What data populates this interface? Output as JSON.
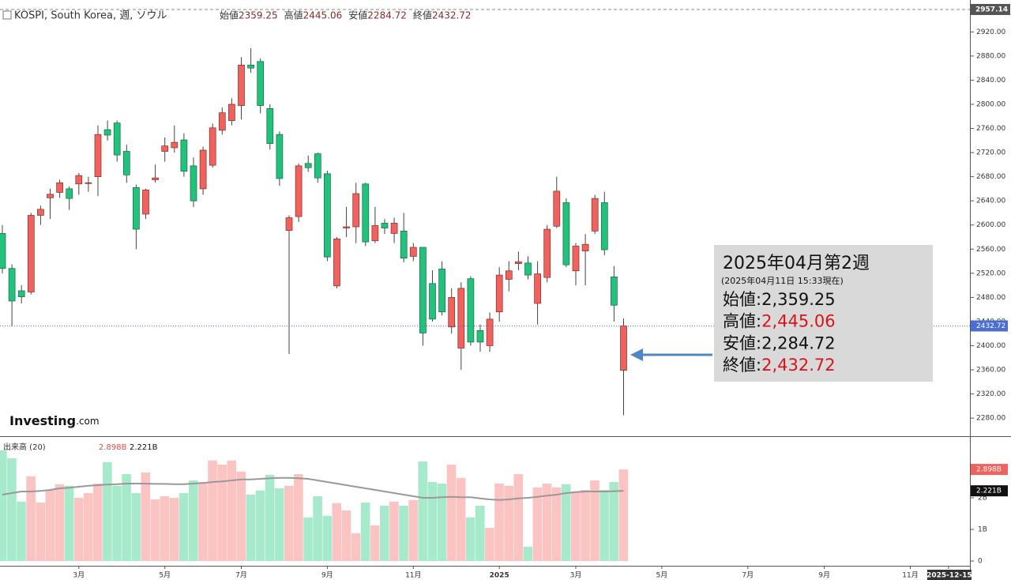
{
  "chart_data": {
    "type": "candlestick",
    "title": "KOSPI, South Korea, 週, ソウル",
    "ohlc_labels": [
      "始値",
      "高値",
      "安値",
      "終値"
    ],
    "open": [
      2586,
      2528,
      2491,
      2489,
      2616,
      2645,
      2654,
      2660,
      2668,
      2669,
      2680,
      2758,
      2769,
      2722,
      2662,
      2618,
      2675,
      2722,
      2728,
      2741,
      2698,
      2660,
      2699,
      2757,
      2773,
      2798,
      2865,
      2871,
      2793,
      2750,
      2591,
      2614,
      2702,
      2718,
      2685,
      2499,
      2595,
      2597,
      2668,
      2574,
      2603,
      2586,
      2590,
      2548,
      2563,
      2503,
      2527,
      2431,
      2396,
      2511,
      2425,
      2400,
      2456,
      2510,
      2536,
      2537,
      2470,
      2513,
      2598,
      2637,
      2524,
      2557,
      2590,
      2637,
      2514,
      2359.25
    ],
    "high": [
      2600,
      2535,
      2500,
      2620,
      2632,
      2660,
      2675,
      2664,
      2686,
      2680,
      2765,
      2773,
      2773,
      2733,
      2667,
      2660,
      2700,
      2745,
      2765,
      2752,
      2712,
      2730,
      2768,
      2795,
      2810,
      2878,
      2893,
      2876,
      2800,
      2755,
      2616,
      2702,
      2715,
      2720,
      2690,
      2580,
      2630,
      2670,
      2670,
      2630,
      2610,
      2612,
      2620,
      2570,
      2563,
      2525,
      2540,
      2495,
      2505,
      2515,
      2435,
      2455,
      2530,
      2540,
      2556,
      2548,
      2540,
      2600,
      2680,
      2644,
      2570,
      2585,
      2650,
      2655,
      2532,
      2445.06
    ],
    "low": [
      2520,
      2432,
      2470,
      2485,
      2600,
      2610,
      2645,
      2625,
      2650,
      2655,
      2648,
      2740,
      2705,
      2670,
      2560,
      2610,
      2670,
      2705,
      2720,
      2680,
      2630,
      2650,
      2695,
      2750,
      2765,
      2775,
      2852,
      2785,
      2725,
      2665,
      2386,
      2605,
      2688,
      2670,
      2540,
      2495,
      2580,
      2570,
      2565,
      2570,
      2585,
      2570,
      2538,
      2540,
      2400,
      2440,
      2450,
      2420,
      2360,
      2400,
      2390,
      2390,
      2440,
      2490,
      2525,
      2510,
      2435,
      2505,
      2595,
      2530,
      2500,
      2500,
      2585,
      2550,
      2440,
      2284.72
    ],
    "close": [
      2528,
      2474,
      2481,
      2616,
      2626,
      2651,
      2670,
      2644,
      2682,
      2670,
      2750,
      2749,
      2716,
      2683,
      2593,
      2658,
      2678,
      2731,
      2737,
      2689,
      2640,
      2724,
      2761,
      2786,
      2800,
      2865,
      2860,
      2798,
      2735,
      2677,
      2612,
      2698,
      2695,
      2678,
      2547,
      2577,
      2597,
      2652,
      2572,
      2599,
      2595,
      2603,
      2545,
      2563,
      2421,
      2444,
      2456,
      2480,
      2495,
      2406,
      2406,
      2444,
      2517,
      2524,
      2539,
      2517,
      2519,
      2593,
      2656,
      2534,
      2565,
      2568,
      2644,
      2559,
      2467,
      2432.72
    ],
    "up_color": "#f0625d",
    "down_color": "#22c27c",
    "ylim": [
      2250,
      2957.14
    ],
    "yticks": [
      {
        "value": 2920,
        "label": "2920.00"
      },
      {
        "value": 2880,
        "label": "2880.00"
      },
      {
        "value": 2840,
        "label": "2840.00"
      },
      {
        "value": 2800,
        "label": "2800.00"
      },
      {
        "value": 2760,
        "label": "2760.00"
      },
      {
        "value": 2720,
        "label": "2720.00"
      },
      {
        "value": 2680,
        "label": "2680.00"
      },
      {
        "value": 2640,
        "label": "2640.00"
      },
      {
        "value": 2600,
        "label": "2600.00"
      },
      {
        "value": 2560,
        "label": "2560.00"
      },
      {
        "value": 2520,
        "label": "2520.00"
      },
      {
        "value": 2480,
        "label": "2480.00"
      },
      {
        "value": 2440,
        "label": "2440.00"
      },
      {
        "value": 2400,
        "label": "2400.00"
      },
      {
        "value": 2360,
        "label": "2360.00"
      },
      {
        "value": 2320,
        "label": "2320.00"
      },
      {
        "value": 2280,
        "label": "2280.00"
      }
    ],
    "xticks": [
      {
        "value": 8,
        "label": "3月"
      },
      {
        "value": 17,
        "label": "5月"
      },
      {
        "value": 25,
        "label": "7月"
      },
      {
        "value": 34,
        "label": "9月"
      },
      {
        "value": 43,
        "label": "11月"
      },
      {
        "value": 52,
        "label": "2025"
      },
      {
        "value": 60,
        "label": "3月"
      },
      {
        "value": 69,
        "label": "5月"
      },
      {
        "value": 78,
        "label": "7月"
      },
      {
        "value": 86,
        "label": "9月"
      },
      {
        "value": 95,
        "label": "11月"
      },
      {
        "value": 99,
        "label": "2025-12-15"
      }
    ],
    "volume": {
      "title": "出来高 (20)",
      "values": [
        3.5,
        3.25,
        1.88,
        2.68,
        1.85,
        2.25,
        2.43,
        2.38,
        2.0,
        2.15,
        2.45,
        3.13,
        2.38,
        2.75,
        2.15,
        2.8,
        1.95,
        2.05,
        2.0,
        2.15,
        2.55,
        2.5,
        3.18,
        3.05,
        3.18,
        2.83,
        2.1,
        2.23,
        2.73,
        2.3,
        2.38,
        2.75,
        1.38,
        2.05,
        1.43,
        1.83,
        1.6,
        0.88,
        1.85,
        1.13,
        1.75,
        1.88,
        1.75,
        1.93,
        3.15,
        2.5,
        2.45,
        3.05,
        2.63,
        1.38,
        1.75,
        1.05,
        2.45,
        2.38,
        2.75,
        0.45,
        2.33,
        2.45,
        2.33,
        2.43,
        2.2,
        2.25,
        2.55,
        2.25,
        2.5,
        2.898
      ],
      "last_label": "2.898B",
      "ma": [
        2.1,
        2.15,
        2.2,
        2.2,
        2.22,
        2.25,
        2.3,
        2.32,
        2.35,
        2.38,
        2.4,
        2.42,
        2.43,
        2.45,
        2.45,
        2.45,
        2.44,
        2.44,
        2.43,
        2.43,
        2.45,
        2.47,
        2.5,
        2.52,
        2.55,
        2.58,
        2.58,
        2.6,
        2.62,
        2.63,
        2.63,
        2.62,
        2.6,
        2.55,
        2.5,
        2.45,
        2.4,
        2.35,
        2.3,
        2.25,
        2.2,
        2.15,
        2.1,
        2.05,
        2.0,
        2.0,
        2.02,
        2.03,
        2.02,
        2.02,
        1.98,
        1.95,
        1.93,
        1.95,
        1.98,
        2.0,
        2.03,
        2.07,
        2.1,
        2.15,
        2.18,
        2.2,
        2.2,
        2.2,
        2.21,
        2.221
      ],
      "ma_last_label": "2.221B",
      "ylim": [
        -0.15,
        3.85
      ],
      "yticks": [
        {
          "value": 2,
          "label": "2B"
        },
        {
          "value": 1,
          "label": "1B"
        },
        0
      ],
      "up_color": "#fbc3c1",
      "down_color": "#a6e9cb",
      "ma_color": "#999999"
    },
    "info_box": {
      "title": "2025年04月第2週",
      "subtitle": "(2025年04月11日 15:33現在)",
      "rows": [
        {
          "label": "始値",
          "value": "2,359.25",
          "color": "#111111"
        },
        {
          "label": "高値",
          "value": "2,445.06",
          "color": "#d9141c"
        },
        {
          "label": "安値",
          "value": "2,284.72",
          "color": "#111111"
        },
        {
          "label": "終値",
          "value": "2,432.72",
          "color": "#d9141c"
        }
      ]
    },
    "logo": {
      "brand": "Investing",
      "suffix": ".com"
    }
  }
}
